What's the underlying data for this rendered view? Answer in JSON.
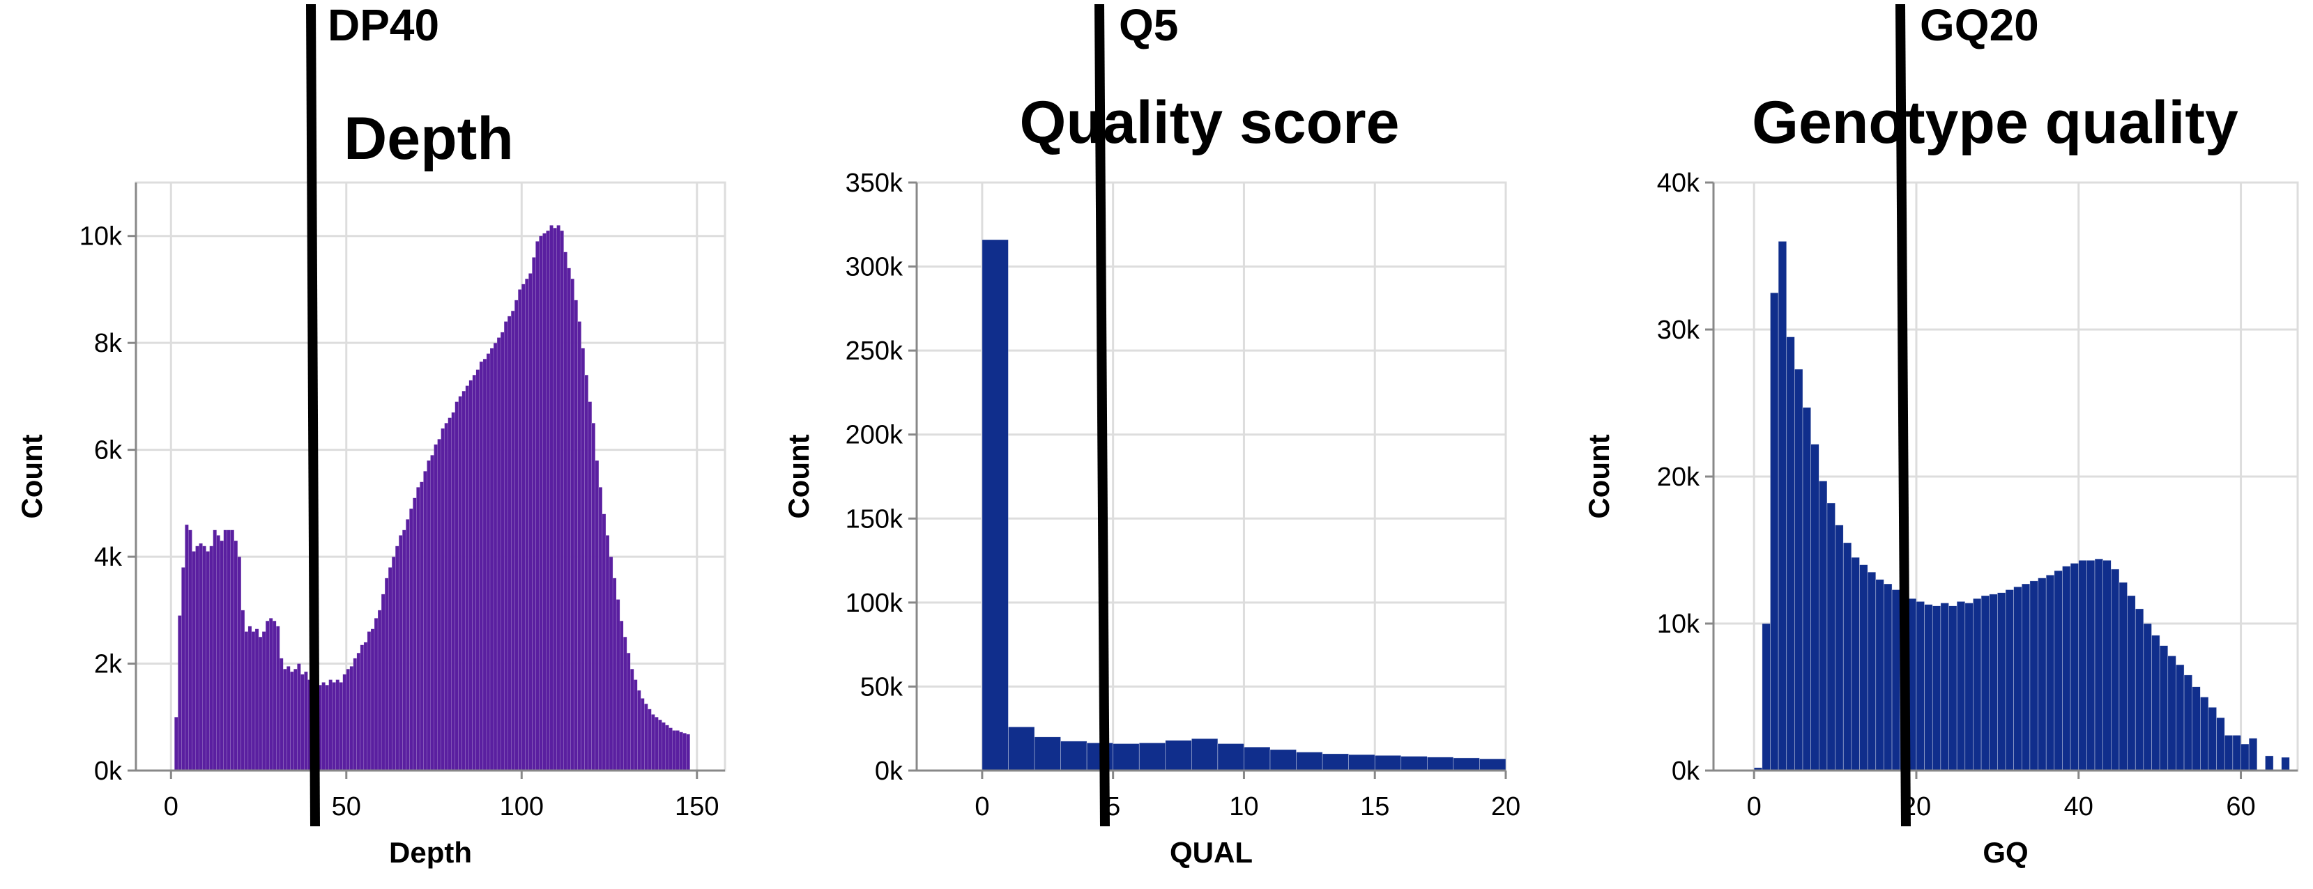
{
  "colors": {
    "depth_bars": "#5a1fa0",
    "quality_bars": "#102e8c",
    "gq_bars": "#102e8c",
    "threshold": "#000000"
  },
  "chart_data": [
    {
      "type": "bar",
      "title": "Depth",
      "xlabel": "Depth",
      "ylabel": "Count",
      "xlim": [
        -10,
        158
      ],
      "ylim": [
        0,
        11000
      ],
      "x_ticks": [
        "0",
        "50",
        "100",
        "150"
      ],
      "y_ticks": [
        "0k",
        "2k",
        "4k",
        "6k",
        "8k",
        "10k"
      ],
      "grid": true,
      "bin_width": 1,
      "bin_start": 1,
      "values": [
        1000,
        2900,
        3800,
        4600,
        4500,
        4100,
        4200,
        4250,
        4200,
        4100,
        4200,
        4500,
        4400,
        4300,
        4500,
        4500,
        4500,
        4300,
        4000,
        3000,
        2600,
        2700,
        2600,
        2650,
        2500,
        2600,
        2800,
        2850,
        2800,
        2700,
        2100,
        1900,
        1950,
        1850,
        1900,
        2000,
        1800,
        1850,
        1700,
        1650,
        1600,
        1600,
        1650,
        1600,
        1700,
        1650,
        1700,
        1650,
        1800,
        1900,
        1950,
        2100,
        2200,
        2350,
        2400,
        2600,
        2650,
        2850,
        3000,
        3300,
        3600,
        3800,
        4000,
        4200,
        4400,
        4500,
        4700,
        4900,
        5100,
        5300,
        5400,
        5600,
        5800,
        5900,
        6100,
        6200,
        6400,
        6500,
        6600,
        6700,
        6900,
        7000,
        7100,
        7200,
        7300,
        7400,
        7500,
        7650,
        7700,
        7800,
        7900,
        8000,
        8100,
        8200,
        8400,
        8500,
        8600,
        8800,
        9000,
        9100,
        9200,
        9300,
        9600,
        9900,
        10000,
        10050,
        10100,
        10200,
        10150,
        10200,
        10100,
        9700,
        9400,
        9200,
        8800,
        8400,
        7900,
        7400,
        6900,
        6500,
        5800,
        5300,
        4800,
        4400,
        4000,
        3600,
        3200,
        2800,
        2500,
        2200,
        1900,
        1700,
        1500,
        1350,
        1250,
        1150,
        1050,
        1000,
        950,
        900,
        850,
        800,
        750,
        750,
        720,
        700,
        680
      ]
    },
    {
      "type": "bar",
      "title": "Quality score",
      "xlabel": "QUAL",
      "ylabel": "Count",
      "xlim": [
        -2.5,
        20
      ],
      "ylim": [
        0,
        350000
      ],
      "x_ticks": [
        "0",
        "5",
        "10",
        "15",
        "20"
      ],
      "y_ticks": [
        "0k",
        "50k",
        "100k",
        "150k",
        "200k",
        "250k",
        "300k",
        "350k"
      ],
      "grid": true,
      "bin_width": 1,
      "bin_start": 0,
      "values": [
        316000,
        26000,
        20000,
        17500,
        16500,
        16000,
        16500,
        18000,
        19000,
        16000,
        14000,
        12500,
        11000,
        10000,
        9500,
        9000,
        8500,
        8000,
        7500,
        7000
      ]
    },
    {
      "type": "bar",
      "title": "Genotype quality",
      "xlabel": "GQ",
      "ylabel": "Count",
      "xlim": [
        -5,
        67
      ],
      "ylim": [
        0,
        40000
      ],
      "x_ticks": [
        "0",
        "20",
        "40",
        "60"
      ],
      "y_ticks": [
        "0k",
        "10k",
        "20k",
        "30k",
        "40k"
      ],
      "grid": true,
      "bin_width": 1,
      "bin_start": 0,
      "values": [
        200,
        10000,
        32500,
        36000,
        29500,
        27300,
        24700,
        22200,
        19700,
        18200,
        16700,
        15500,
        14500,
        14000,
        13500,
        13000,
        12700,
        12300,
        12000,
        11700,
        11500,
        11300,
        11200,
        11400,
        11200,
        11500,
        11400,
        11700,
        11900,
        12000,
        12100,
        12300,
        12500,
        12700,
        12900,
        13100,
        13300,
        13600,
        13900,
        14100,
        14300,
        14300,
        14400,
        14300,
        13700,
        12800,
        11900,
        11000,
        10000,
        9200,
        8500,
        7800,
        7200,
        6500,
        5700,
        5000,
        4300,
        3600,
        2400,
        2400,
        1800,
        2200,
        0,
        1000,
        0,
        900
      ]
    }
  ],
  "thresholds": [
    {
      "label": "DP40"
    },
    {
      "label": "Q5"
    },
    {
      "label": "GQ20"
    }
  ]
}
